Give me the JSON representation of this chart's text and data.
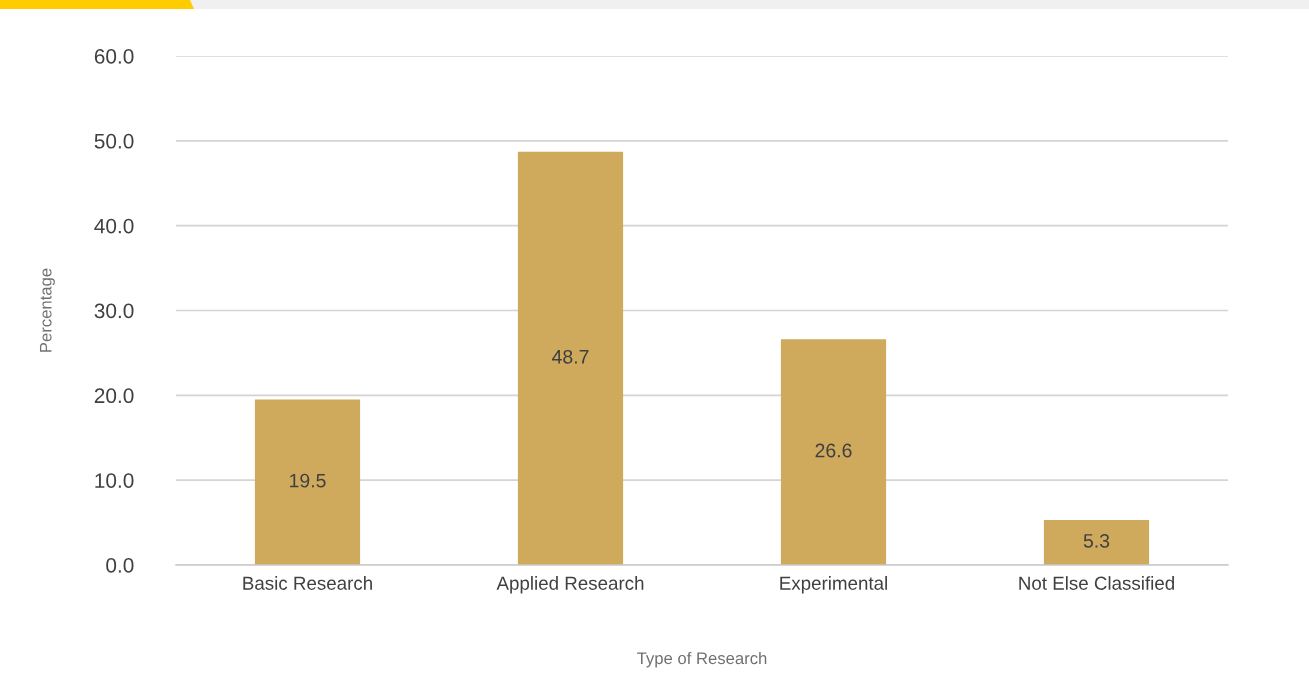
{
  "chart_data": {
    "type": "bar",
    "xlabel": "Type of Research",
    "ylabel": "Percentage",
    "categories": [
      "Basic Research",
      "Applied Research",
      "Experimental",
      "Not Else Classified"
    ],
    "values": [
      19.5,
      48.7,
      26.6,
      5.3
    ],
    "color": "#cfaa5c",
    "ylim": [
      0,
      60
    ],
    "yticks": [
      {
        "value": 0,
        "label": "0.0"
      },
      {
        "value": 10,
        "label": "10.0"
      },
      {
        "value": 20,
        "label": "20.0"
      },
      {
        "value": 30,
        "label": "30.0"
      },
      {
        "value": 40,
        "label": "40.0"
      },
      {
        "value": 50,
        "label": "50.0"
      },
      {
        "value": 60,
        "label": "60.0"
      }
    ],
    "grid": "y",
    "data_labels": true
  }
}
